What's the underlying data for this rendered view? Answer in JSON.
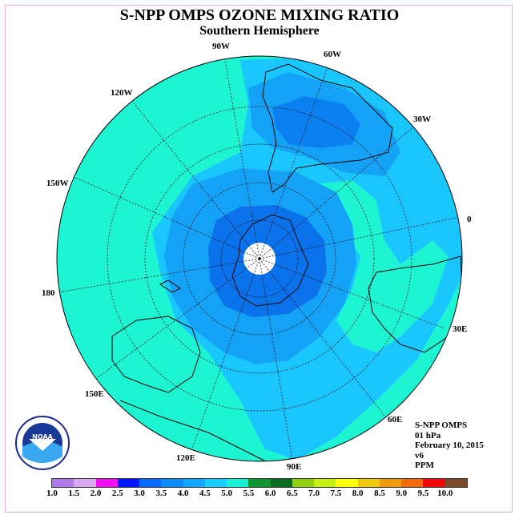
{
  "title": "S-NPP OMPS OZONE MIXING RATIO",
  "subtitle": "Southern Hemisphere",
  "longitudes": {
    "lon_90w": "90W",
    "lon_60w": "60W",
    "lon_30w": "30W",
    "lon_0": "0",
    "lon_30e": "30E",
    "lon_60e": "60E",
    "lon_90e": "90E",
    "lon_120e": "120E",
    "lon_150e": "150E",
    "lon_180": "180",
    "lon_150w": "150W",
    "lon_120w": "120W"
  },
  "info": {
    "instrument": "S-NPP OMPS",
    "level": "01 hPa",
    "date": "February 10, 2015",
    "version": "v6",
    "units": "PPM"
  },
  "logo": {
    "text": "NOAA",
    "ring_text": "NATIONAL OCEANIC AND ATMOSPHERIC ADMINISTRATION",
    "dept_text": "U.S. DEPARTMENT OF COMMERCE"
  },
  "colorbar": {
    "ticks": [
      "1.0",
      "1.5",
      "2.0",
      "2.5",
      "3.0",
      "3.5",
      "4.0",
      "4.5",
      "5.0",
      "5.5",
      "6.0",
      "6.5",
      "7.0",
      "7.5",
      "8.0",
      "8.5",
      "9.0",
      "9.5",
      "10.0"
    ],
    "colors": [
      "#b07ae8",
      "#d8a8f0",
      "#f010f0",
      "#0018ff",
      "#0a6aff",
      "#0c8cf4",
      "#13a8ff",
      "#18ccff",
      "#1af0d4",
      "#10962e",
      "#0a6a1e",
      "#90d010",
      "#c8ee18",
      "#ffff10",
      "#f0c810",
      "#f09a10",
      "#f06a10",
      "#f00808",
      "#7a4a2a"
    ]
  },
  "field_colors": {
    "outer": "#1cf4d2",
    "band_40": "#1ac6ff",
    "band_35": "#14a2f6",
    "band_30": "#0a80f0",
    "core": "#0a72ea",
    "pole": "#ffffff"
  }
}
